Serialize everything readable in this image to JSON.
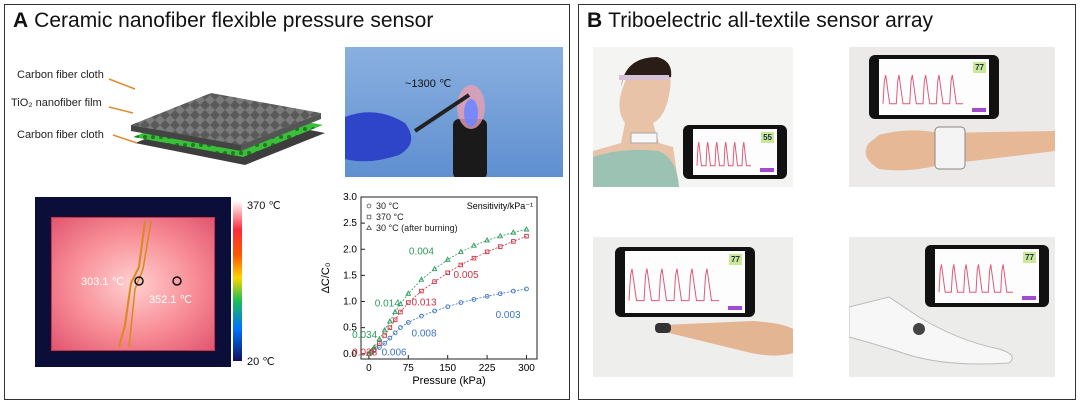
{
  "panel_a": {
    "letter": "A",
    "title": "Ceramic nanofiber flexible  pressure sensor",
    "layers": {
      "top": "Carbon fiber cloth",
      "middle": "TiO₂ nanofiber film",
      "bottom": "Carbon fiber cloth"
    },
    "flame_label": "~1300 ℃",
    "thermal": {
      "max": "370 ℃",
      "min": "20 ℃",
      "point1": "303.1 ℃",
      "point2": "352.1 ℃"
    }
  },
  "panel_b": {
    "letter": "B",
    "title": "Triboelectric all-textile  sensor array",
    "phone_readings": [
      "55",
      "77",
      "77",
      "77"
    ]
  },
  "colors": {
    "green_series": "#2a9d5a",
    "red_series": "#cc3344",
    "blue_series": "#3a74c4",
    "green_layer": "#3bbf3b"
  },
  "chart_data": {
    "type": "line",
    "xlabel": "Pressure (kPa)",
    "ylabel": "ΔC/C₀",
    "xlim": [
      -15,
      320
    ],
    "ylim": [
      -0.1,
      3.0
    ],
    "xticks": [
      0,
      75,
      150,
      225,
      300
    ],
    "yticks": [
      0.0,
      0.5,
      1.0,
      1.5,
      2.0,
      2.5,
      3.0
    ],
    "legend_title": "Sensitivity/kPa⁻¹",
    "legend_position": "top-left",
    "series": [
      {
        "name": "30 °C",
        "marker": "circle",
        "color": "#3a74c4",
        "x": [
          0,
          5,
          10,
          20,
          30,
          40,
          50,
          60,
          75,
          100,
          125,
          150,
          175,
          200,
          225,
          250,
          275,
          300
        ],
        "y": [
          0,
          0.03,
          0.06,
          0.12,
          0.2,
          0.3,
          0.4,
          0.5,
          0.6,
          0.72,
          0.82,
          0.9,
          0.98,
          1.04,
          1.1,
          1.15,
          1.2,
          1.24
        ]
      },
      {
        "name": "370 °C",
        "marker": "square",
        "color": "#cc3344",
        "x": [
          0,
          5,
          10,
          20,
          30,
          40,
          50,
          60,
          75,
          100,
          125,
          150,
          175,
          200,
          225,
          250,
          275,
          300
        ],
        "y": [
          0,
          0.03,
          0.08,
          0.2,
          0.35,
          0.5,
          0.65,
          0.8,
          0.98,
          1.2,
          1.38,
          1.55,
          1.7,
          1.83,
          1.95,
          2.05,
          2.15,
          2.25
        ]
      },
      {
        "name": "30 °C (after burning)",
        "marker": "triangle",
        "color": "#2a9d5a",
        "x": [
          0,
          5,
          10,
          20,
          30,
          40,
          50,
          60,
          75,
          100,
          125,
          150,
          175,
          200,
          225,
          250,
          275,
          300
        ],
        "y": [
          0,
          0.05,
          0.12,
          0.28,
          0.45,
          0.62,
          0.8,
          0.95,
          1.15,
          1.42,
          1.62,
          1.8,
          1.95,
          2.07,
          2.17,
          2.25,
          2.32,
          2.38
        ]
      }
    ],
    "annotations": [
      {
        "text": "0.004",
        "x": 100,
        "y": 1.9,
        "color": "#2a9d5a"
      },
      {
        "text": "0.005",
        "x": 185,
        "y": 1.45,
        "color": "#cc3344"
      },
      {
        "text": "0.003",
        "x": 265,
        "y": 0.68,
        "color": "#3a74c4"
      },
      {
        "text": "0.014",
        "x": 35,
        "y": 0.9,
        "color": "#2a9d5a"
      },
      {
        "text": "0.013",
        "x": 105,
        "y": 0.92,
        "color": "#cc3344"
      },
      {
        "text": "0.008",
        "x": 105,
        "y": 0.33,
        "color": "#3a74c4"
      },
      {
        "text": "0.034",
        "x": -8,
        "y": 0.3,
        "color": "#2a9d5a"
      },
      {
        "text": "0.028",
        "x": -8,
        "y": -0.03,
        "color": "#cc3344"
      },
      {
        "text": "0.006",
        "x": 48,
        "y": -0.03,
        "color": "#3a74c4"
      }
    ]
  }
}
